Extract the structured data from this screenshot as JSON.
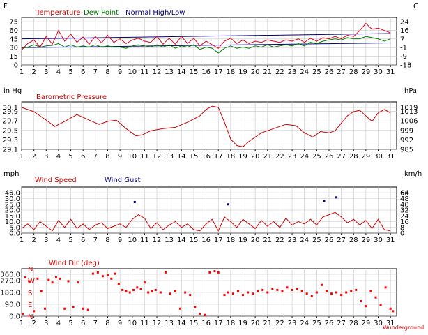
{
  "chart_data": [
    {
      "type": "line",
      "legend": [
        "Temperature",
        "Dew Point",
        "Normal High/Low"
      ],
      "colors": {
        "temperature": "#e0001b",
        "dew_point": "#008000",
        "normal": "#00007f",
        "label": "#cc0000",
        "axis": "#000000",
        "grid": "#c8c8c8"
      },
      "left_unit": "F",
      "right_unit": "C",
      "ylim": [
        0,
        80
      ],
      "left_ticks": [
        "75",
        "60",
        "45",
        "30",
        "15",
        "0"
      ],
      "right_ticks": [
        "24",
        "16",
        "7",
        "-1",
        "-9",
        "-18"
      ],
      "x_days": [
        "1",
        "2",
        "3",
        "4",
        "5",
        "6",
        "7",
        "8",
        "9",
        "10",
        "11",
        "12",
        "13",
        "14",
        "15",
        "16",
        "17",
        "18",
        "19",
        "20",
        "21",
        "22",
        "23",
        "24",
        "25",
        "26",
        "27",
        "28",
        "29",
        "30",
        "31"
      ],
      "series": [
        {
          "name": "Temperature",
          "x": [
            1,
            1.5,
            2,
            2.5,
            3,
            3.5,
            4,
            4.5,
            5,
            5.5,
            6,
            6.5,
            7,
            7.5,
            8,
            8.5,
            9,
            9.5,
            10,
            10.5,
            11,
            11.5,
            12,
            12.5,
            13,
            13.5,
            14,
            14.5,
            15,
            15.5,
            16,
            16.5,
            17,
            17.5,
            18,
            18.5,
            19,
            19.5,
            20,
            20.5,
            21,
            21.5,
            22,
            22.5,
            23,
            23.5,
            24,
            24.5,
            25,
            25.5,
            26,
            26.5,
            27,
            27.5,
            28,
            28.5,
            29,
            29.5,
            30,
            30.5,
            31
          ],
          "values": [
            25,
            36,
            42,
            30,
            48,
            35,
            58,
            40,
            52,
            38,
            47,
            35,
            48,
            37,
            50,
            38,
            44,
            36,
            42,
            45,
            40,
            38,
            48,
            35,
            45,
            35,
            48,
            36,
            45,
            32,
            40,
            34,
            28,
            40,
            45,
            36,
            42,
            36,
            40,
            38,
            42,
            40,
            38,
            42,
            40,
            44,
            38,
            45,
            40,
            46,
            44,
            48,
            44,
            50,
            48,
            58,
            70,
            60,
            62,
            58,
            54
          ]
        },
        {
          "name": "Dew Point",
          "x": [
            1,
            1.5,
            2,
            2.5,
            3,
            3.5,
            4,
            4.5,
            5,
            5.5,
            6,
            6.5,
            7,
            7.5,
            8,
            8.5,
            9,
            9.5,
            10,
            10.5,
            11,
            11.5,
            12,
            12.5,
            13,
            13.5,
            14,
            14.5,
            15,
            15.5,
            16,
            16.5,
            17,
            17.5,
            18,
            18.5,
            19,
            19.5,
            20,
            20.5,
            21,
            21.5,
            22,
            22.5,
            23,
            23.5,
            24,
            24.5,
            25,
            25.5,
            26,
            26.5,
            27,
            27.5,
            28,
            28.5,
            29,
            29.5,
            30,
            30.5,
            31
          ],
          "values": [
            28,
            30,
            34,
            30,
            32,
            33,
            36,
            30,
            34,
            30,
            32,
            30,
            34,
            30,
            32,
            30,
            30,
            28,
            32,
            34,
            32,
            30,
            34,
            30,
            34,
            28,
            32,
            30,
            34,
            26,
            30,
            28,
            20,
            28,
            32,
            28,
            30,
            28,
            32,
            30,
            34,
            30,
            32,
            34,
            32,
            36,
            32,
            38,
            36,
            40,
            42,
            44,
            42,
            46,
            44,
            44,
            48,
            46,
            44,
            40,
            44
          ]
        },
        {
          "name": "Normal High",
          "x": [
            1,
            31
          ],
          "values": [
            44,
            53
          ]
        },
        {
          "name": "Normal Low",
          "x": [
            1,
            31
          ],
          "values": [
            29,
            37
          ]
        }
      ]
    },
    {
      "type": "line",
      "title": "Barometric Pressure",
      "left_unit": "in Hg",
      "right_unit": "hPa",
      "ylim": [
        29.06,
        30.18
      ],
      "left_ticks": [
        "30.1",
        "29.9",
        "29.7",
        "29.5",
        "29.3",
        "29.1"
      ],
      "right_ticks": [
        "1019",
        "1013",
        "1006",
        "999",
        "992",
        "985"
      ],
      "x_days": [
        "1",
        "2",
        "3",
        "4",
        "5",
        "6",
        "7",
        "8",
        "9",
        "10",
        "11",
        "12",
        "13",
        "14",
        "15",
        "16",
        "17",
        "18",
        "19",
        "20",
        "21",
        "22",
        "23",
        "24",
        "25",
        "26",
        "27",
        "28",
        "29",
        "30",
        "31"
      ],
      "series": [
        {
          "name": "Pressure",
          "x": [
            1,
            2,
            3,
            3.7,
            4.5,
            5.5,
            6.5,
            7.3,
            8,
            8.7,
            9.5,
            10.3,
            10.8,
            11.5,
            12.5,
            13.5,
            14.5,
            15.5,
            16,
            16.5,
            17,
            17.5,
            18,
            18.5,
            19,
            19.5,
            20.5,
            21.5,
            22.5,
            23.3,
            24,
            24.7,
            25.3,
            26,
            26.5,
            27,
            27.5,
            28,
            28.5,
            29,
            29.5,
            30,
            30.5,
            31
          ],
          "values": [
            30.05,
            29.95,
            29.75,
            29.6,
            29.72,
            29.88,
            29.75,
            29.65,
            29.72,
            29.75,
            29.55,
            29.38,
            29.4,
            29.5,
            29.55,
            29.58,
            29.7,
            29.85,
            30.0,
            30.08,
            30.05,
            29.7,
            29.3,
            29.15,
            29.12,
            29.25,
            29.45,
            29.55,
            29.65,
            29.62,
            29.45,
            29.35,
            29.48,
            29.45,
            29.5,
            29.68,
            29.85,
            29.95,
            29.98,
            29.85,
            29.72,
            29.92,
            30.0,
            29.92
          ]
        }
      ]
    },
    {
      "type": "line",
      "legend": [
        "Wind Speed",
        "Wind Gust"
      ],
      "left_unit": "mph",
      "right_unit": "km/h",
      "ylim": [
        0,
        40
      ],
      "left_ticks": [
        "40.0",
        "35.0",
        "30.0",
        "25.0",
        "20.0",
        "15.0",
        "10.0",
        "5.0",
        "0.0"
      ],
      "right_ticks": [
        "64",
        "56",
        "48",
        "40",
        "32",
        "24",
        "16",
        "8",
        "0"
      ],
      "x_days": [
        "1",
        "2",
        "3",
        "4",
        "5",
        "6",
        "7",
        "8",
        "9",
        "10",
        "11",
        "12",
        "13",
        "14",
        "15",
        "16",
        "17",
        "18",
        "19",
        "20",
        "21",
        "22",
        "23",
        "24",
        "25",
        "26",
        "27",
        "28",
        "29",
        "30",
        "31"
      ],
      "series": [
        {
          "name": "Wind Speed",
          "x": [
            1,
            1.5,
            2,
            2.5,
            3,
            3.5,
            4,
            4.5,
            5,
            5.5,
            6,
            6.5,
            7,
            7.5,
            8,
            8.5,
            9,
            9.5,
            10,
            10.5,
            11,
            11.5,
            12,
            12.5,
            13,
            13.5,
            14,
            14.5,
            15,
            15.5,
            16,
            16.5,
            17,
            17.5,
            18,
            18.5,
            19,
            19.5,
            20,
            20.5,
            21,
            21.5,
            22,
            22.5,
            23,
            23.5,
            24,
            24.5,
            25,
            25.5,
            26,
            26.5,
            27,
            27.5,
            28,
            28.5,
            29,
            29.5,
            30,
            30.5,
            31
          ],
          "values": [
            4,
            8,
            3,
            10,
            6,
            2,
            11,
            5,
            12,
            4,
            8,
            3,
            7,
            9,
            4,
            6,
            8,
            5,
            12,
            16,
            13,
            4,
            9,
            3,
            7,
            10,
            5,
            8,
            3,
            2,
            8,
            12,
            2,
            14,
            10,
            5,
            12,
            8,
            4,
            11,
            6,
            10,
            5,
            13,
            7,
            10,
            8,
            12,
            7,
            14,
            16,
            18,
            14,
            9,
            12,
            7,
            11,
            4,
            12,
            3,
            2
          ]
        },
        {
          "name": "Wind Gust",
          "x": [
            10.2,
            17.8,
            25.6,
            26.6
          ],
          "values": [
            27,
            25,
            28,
            31
          ]
        }
      ]
    },
    {
      "type": "scatter",
      "title": "Wind Dir (deg)",
      "ylim": [
        0,
        380
      ],
      "left_ticks": [
        "360.0",
        "270.0",
        "180.0",
        "90.0",
        "0.0"
      ],
      "compass": [
        "N",
        "W",
        "S",
        "E",
        "N"
      ],
      "x_days": [
        "1",
        "2",
        "3",
        "4",
        "5",
        "6",
        "7",
        "8",
        "9",
        "10",
        "11",
        "12",
        "13",
        "14",
        "15",
        "16",
        "17",
        "18",
        "19",
        "20",
        "21",
        "22",
        "23",
        "24",
        "25",
        "26",
        "27",
        "28",
        "29",
        "30",
        "31"
      ],
      "series": [
        {
          "name": "Wind Dir",
          "x": [
            1.1,
            1.3,
            1.6,
            2.0,
            2.3,
            2.6,
            2.9,
            3.2,
            3.5,
            3.8,
            4.1,
            4.5,
            4.8,
            5.2,
            5.6,
            6.0,
            6.4,
            6.8,
            7.2,
            7.6,
            8.0,
            8.3,
            8.6,
            8.9,
            9.2,
            9.5,
            9.8,
            10.1,
            10.4,
            10.7,
            11.0,
            11.3,
            11.6,
            11.9,
            12.3,
            12.7,
            13.1,
            13.5,
            13.9,
            14.3,
            14.7,
            15.1,
            15.5,
            15.9,
            16.3,
            16.7,
            17.0,
            17.5,
            17.8,
            18.2,
            18.6,
            19.0,
            19.4,
            19.8,
            20.2,
            20.6,
            21.0,
            21.4,
            21.8,
            22.2,
            22.6,
            23.0,
            23.4,
            23.8,
            24.2,
            24.6,
            25.0,
            25.4,
            25.8,
            26.2,
            26.6,
            27.0,
            27.4,
            27.8,
            28.2,
            28.6,
            29.0,
            29.4,
            29.8,
            30.2,
            30.6,
            31.0,
            31.2
          ],
          "values": [
            20,
            310,
            280,
            40,
            300,
            200,
            60,
            290,
            270,
            310,
            300,
            60,
            280,
            70,
            270,
            60,
            50,
            340,
            350,
            320,
            330,
            300,
            340,
            260,
            210,
            200,
            190,
            210,
            230,
            220,
            270,
            190,
            200,
            210,
            190,
            350,
            180,
            200,
            60,
            190,
            170,
            70,
            20,
            10,
            350,
            360,
            350,
            170,
            190,
            180,
            200,
            170,
            190,
            180,
            200,
            210,
            190,
            220,
            210,
            200,
            230,
            210,
            220,
            200,
            180,
            160,
            190,
            250,
            200,
            180,
            190,
            170,
            190,
            200,
            210,
            120,
            80,
            200,
            150,
            90,
            230,
            60,
            40
          ]
        }
      ]
    }
  ],
  "footer": {
    "credit": "Wunderground"
  }
}
